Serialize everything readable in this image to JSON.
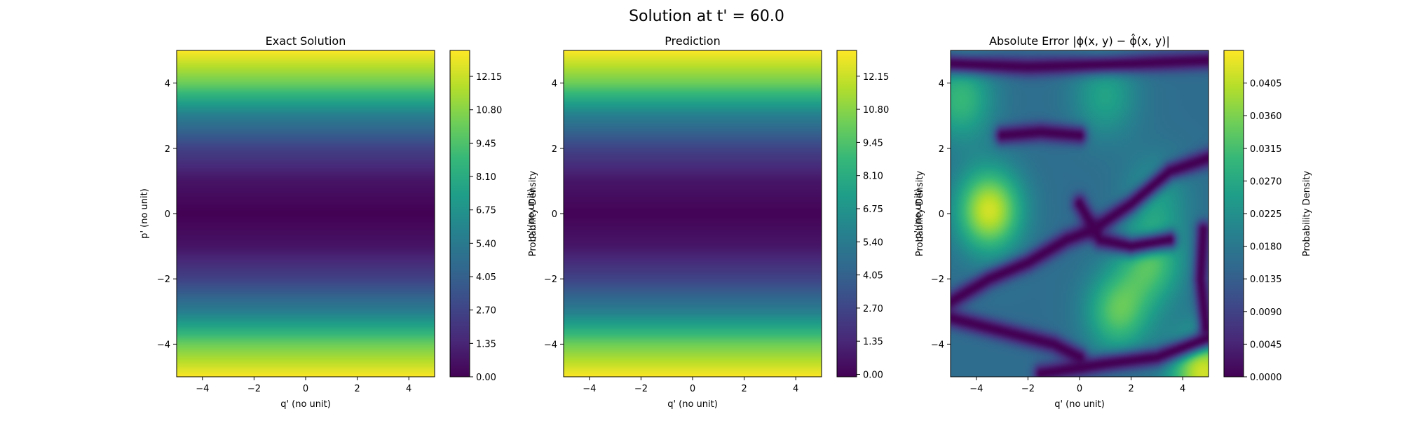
{
  "figure": {
    "suptitle": "Solution at t' = 60.0"
  },
  "colormap": [
    "#440154",
    "#482878",
    "#3e4989",
    "#31688e",
    "#26828e",
    "#1f9e89",
    "#35b779",
    "#6ece58",
    "#b5de2b",
    "#fde725"
  ],
  "chart_data": [
    {
      "type": "heatmap",
      "title": "Exact Solution",
      "xlabel": "q' (no unit)",
      "ylabel": "p' (no unit)",
      "xlim": [
        -5,
        5
      ],
      "ylim": [
        -5,
        5
      ],
      "xticks": [
        "−4",
        "−2",
        "0",
        "2",
        "4"
      ],
      "yticks": [
        "−4",
        "−2",
        "0",
        "2",
        "4"
      ],
      "colorbar": {
        "label": "Probability Density",
        "range": [
          0,
          13.2
        ],
        "ticks": [
          "0.00",
          "1.35",
          "2.70",
          "4.05",
          "5.40",
          "6.75",
          "8.10",
          "9.45",
          "10.80",
          "12.15"
        ]
      },
      "profile_by_y": [
        [
          -5,
          13.2
        ],
        [
          -4,
          10.2
        ],
        [
          -3,
          5.6
        ],
        [
          -2,
          2.6
        ],
        [
          -1,
          0.7
        ],
        [
          0,
          0.0
        ],
        [
          1,
          0.7
        ],
        [
          2,
          2.6
        ],
        [
          3,
          5.6
        ],
        [
          4,
          10.2
        ],
        [
          5,
          13.2
        ]
      ]
    },
    {
      "type": "heatmap",
      "title": "Prediction",
      "xlabel": "q' (no unit)",
      "ylabel": "p' (no unit)",
      "xlim": [
        -5,
        5
      ],
      "ylim": [
        -5,
        5
      ],
      "xticks": [
        "−4",
        "−2",
        "0",
        "2",
        "4"
      ],
      "yticks": [
        "−4",
        "−2",
        "0",
        "2",
        "4"
      ],
      "colorbar": {
        "label": "Probability Density",
        "range": [
          -0.1,
          13.2
        ],
        "ticks": [
          "0.00",
          "1.35",
          "2.70",
          "4.05",
          "5.40",
          "6.75",
          "8.10",
          "9.45",
          "10.80",
          "12.15"
        ]
      },
      "profile_by_y": [
        [
          -5,
          13.2
        ],
        [
          -4,
          10.2
        ],
        [
          -3,
          5.6
        ],
        [
          -2,
          2.6
        ],
        [
          -1,
          0.7
        ],
        [
          0,
          0.0
        ],
        [
          1,
          0.7
        ],
        [
          2,
          2.6
        ],
        [
          3,
          5.6
        ],
        [
          4,
          10.2
        ],
        [
          5,
          13.2
        ]
      ]
    },
    {
      "type": "heatmap",
      "title": "Absolute Error |ϕ(x, y) − ϕ̂(x, y)|",
      "xlabel": "q' (no unit)",
      "ylabel": "p' (no unit)",
      "xlim": [
        -5,
        5
      ],
      "ylim": [
        -5,
        5
      ],
      "xticks": [
        "−4",
        "−2",
        "0",
        "2",
        "4"
      ],
      "yticks": [
        "−4",
        "−2",
        "0",
        "2",
        "4"
      ],
      "colorbar": {
        "label": "Probability Density",
        "range": [
          0,
          0.045
        ],
        "ticks": [
          "0.0000",
          "0.0045",
          "0.0090",
          "0.0135",
          "0.0180",
          "0.0225",
          "0.0270",
          "0.0315",
          "0.0360",
          "0.0405"
        ]
      },
      "background_value": 0.016,
      "hotspots": [
        {
          "x": -3.5,
          "y": 0.1,
          "value": 0.042
        },
        {
          "x": 1.5,
          "y": -3.0,
          "value": 0.033
        },
        {
          "x": 2.8,
          "y": -1.5,
          "value": 0.031
        },
        {
          "x": -4.6,
          "y": 3.5,
          "value": 0.03
        },
        {
          "x": 4.8,
          "y": -4.9,
          "value": 0.042
        },
        {
          "x": 1.0,
          "y": 3.6,
          "value": 0.026
        },
        {
          "x": 3.0,
          "y": 0.5,
          "value": 0.024
        }
      ],
      "minimum_curves": [
        [
          [
            -5,
            4.6
          ],
          [
            -2,
            4.5
          ],
          [
            2,
            4.6
          ],
          [
            5,
            4.7
          ]
        ],
        [
          [
            -5,
            -2.7
          ],
          [
            -3.5,
            -2.0
          ],
          [
            -2,
            -1.5
          ],
          [
            -0.5,
            -0.8
          ],
          [
            0.5,
            -0.5
          ],
          [
            2,
            0.3
          ],
          [
            3.5,
            1.3
          ],
          [
            5,
            1.7
          ]
        ],
        [
          [
            -5,
            -3.2
          ],
          [
            -3,
            -3.6
          ],
          [
            -1,
            -4.0
          ],
          [
            0,
            -4.4
          ]
        ],
        [
          [
            -1.5,
            -4.9
          ],
          [
            1,
            -4.6
          ],
          [
            3,
            -4.4
          ],
          [
            5,
            -3.8
          ]
        ],
        [
          [
            0,
            0.3
          ],
          [
            0.8,
            -0.8
          ],
          [
            2,
            -1.0
          ],
          [
            3.5,
            -0.8
          ]
        ],
        [
          [
            -3,
            2.4
          ],
          [
            -1.5,
            2.5
          ],
          [
            0,
            2.4
          ]
        ],
        [
          [
            4.8,
            -0.5
          ],
          [
            4.7,
            -2.0
          ],
          [
            4.9,
            -3.5
          ]
        ]
      ]
    }
  ]
}
